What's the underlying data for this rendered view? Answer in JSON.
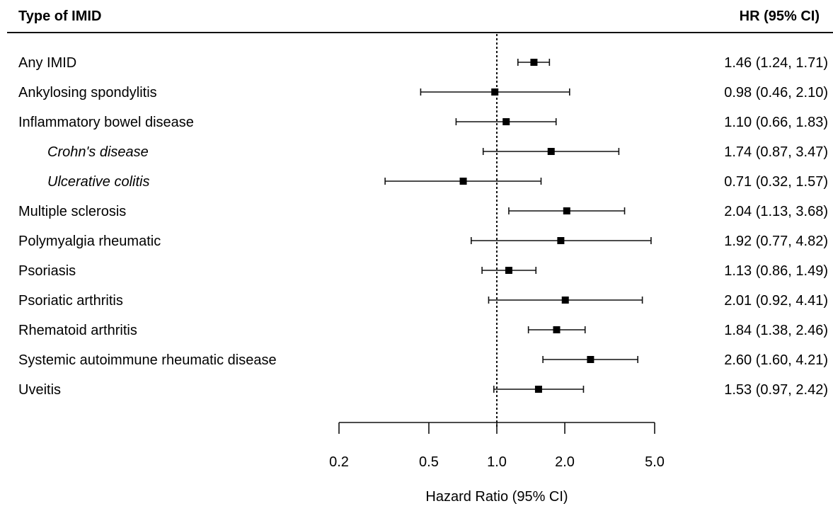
{
  "header": {
    "left": "Type of IMID",
    "right": "HR (95% CI)"
  },
  "chart_data": {
    "type": "forest",
    "xlabel": "Hazard Ratio (95% CI)",
    "xscale": "log",
    "xlim": [
      0.2,
      5.0
    ],
    "xticks": [
      0.2,
      0.5,
      1.0,
      2.0,
      5.0
    ],
    "xtick_labels": [
      "0.2",
      "0.5",
      "1.0",
      "2.0",
      "5.0"
    ],
    "reference_line": 1.0,
    "rows": [
      {
        "label": "Any IMID",
        "hr": 1.46,
        "lo": 1.24,
        "hi": 1.71,
        "text": "1.46 (1.24, 1.71)",
        "sub": false
      },
      {
        "label": "Ankylosing spondylitis",
        "hr": 0.98,
        "lo": 0.46,
        "hi": 2.1,
        "text": "0.98 (0.46, 2.10)",
        "sub": false
      },
      {
        "label": "Inflammatory bowel disease",
        "hr": 1.1,
        "lo": 0.66,
        "hi": 1.83,
        "text": "1.10 (0.66, 1.83)",
        "sub": false
      },
      {
        "label": "Crohn's disease",
        "hr": 1.74,
        "lo": 0.87,
        "hi": 3.47,
        "text": "1.74 (0.87, 3.47)",
        "sub": true
      },
      {
        "label": "Ulcerative colitis",
        "hr": 0.71,
        "lo": 0.32,
        "hi": 1.57,
        "text": "0.71 (0.32, 1.57)",
        "sub": true
      },
      {
        "label": "Multiple sclerosis",
        "hr": 2.04,
        "lo": 1.13,
        "hi": 3.68,
        "text": "2.04 (1.13, 3.68)",
        "sub": false
      },
      {
        "label": "Polymyalgia rheumatic",
        "hr": 1.92,
        "lo": 0.77,
        "hi": 4.82,
        "text": "1.92 (0.77, 4.82)",
        "sub": false
      },
      {
        "label": "Psoriasis",
        "hr": 1.13,
        "lo": 0.86,
        "hi": 1.49,
        "text": "1.13 (0.86, 1.49)",
        "sub": false
      },
      {
        "label": "Psoriatic arthritis",
        "hr": 2.01,
        "lo": 0.92,
        "hi": 4.41,
        "text": "2.01 (0.92, 4.41)",
        "sub": false
      },
      {
        "label": "Rhematoid arthritis",
        "hr": 1.84,
        "lo": 1.38,
        "hi": 2.46,
        "text": "1.84 (1.38, 2.46)",
        "sub": false
      },
      {
        "label": "Systemic autoimmune rheumatic disease",
        "hr": 2.6,
        "lo": 1.6,
        "hi": 4.21,
        "text": "2.60 (1.60, 4.21)",
        "sub": false
      },
      {
        "label": "Uveitis",
        "hr": 1.53,
        "lo": 0.97,
        "hi": 2.42,
        "text": "1.53 (0.97, 2.42)",
        "sub": false
      }
    ]
  }
}
